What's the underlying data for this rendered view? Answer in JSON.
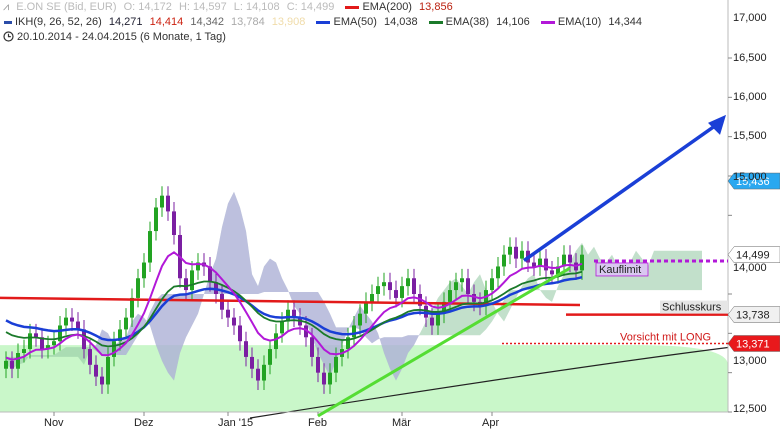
{
  "legend": {
    "instrument": "E.ON SE (Bid, EUR)",
    "o": "O: 14,172",
    "h": "H: 14,597",
    "l": "L: 14,108",
    "c": "C: 14,499",
    "ema200_label": "EMA(200)",
    "ema200_value": "13,856",
    "ikh_label": "IKH(9, 26, 52, 26)",
    "ikh_v1": "14,271",
    "ikh_v2": "14,414",
    "ikh_v3": "14,342",
    "ikh_v4": "13,784",
    "ikh_v5": "13,908",
    "ema50_label": "EMA(50)",
    "ema50_value": "14,038",
    "ema38_label": "EMA(38)",
    "ema38_value": "14,106",
    "ema10_label": "EMA(10)",
    "ema10_value": "14,344",
    "range": "20.10.2014 - 24.04.2015 (6 Monate, 1 Tag)"
  },
  "colors": {
    "up": "#22a322",
    "down": "#7b1fa2",
    "ema200": "#e21a1a",
    "ema50": "#1a3fd6",
    "ema38": "#1b7a2a",
    "ema10": "#b218d8",
    "kumo_bull": "#8fc7a0",
    "kumo_bear": "#b9a6ee",
    "uptrend": "#55dd33",
    "target": "#1a3fd6",
    "support_zone": "#c9f7c9"
  },
  "annotations": {
    "kauflimit": "Kauflimit",
    "schlusskurs": "Schlusskurs",
    "vorsicht": "Vorsicht mit LONG",
    "price_15436": "15,436",
    "price_14499": "14,499",
    "price_13738": "13,738",
    "price_13371": "13,371"
  },
  "chart_data": {
    "type": "candlestick",
    "title": "E.ON SE (Bid, EUR)",
    "x_labels": [
      "Nov",
      "Dez",
      "Jan '15",
      "Feb",
      "Mär",
      "Apr"
    ],
    "y_ticks": [
      12.5,
      13.0,
      13.5,
      14.0,
      14.5,
      15.0,
      15.5,
      16.0,
      16.5,
      17.0
    ],
    "y_tick_labels": [
      "12,500",
      "13,000",
      "13,500",
      "14,000",
      "14,500",
      "15,000",
      "15,500",
      "16,000",
      "16,500",
      "17,000"
    ],
    "ylim": [
      12.4,
      17.1
    ],
    "x_month_index": [
      8,
      23,
      37,
      52,
      66,
      81
    ],
    "n_bars": 97,
    "closes": [
      13.15,
      13.05,
      13.25,
      13.3,
      13.5,
      13.45,
      13.3,
      13.35,
      13.4,
      13.6,
      13.7,
      13.65,
      13.55,
      13.3,
      13.1,
      12.95,
      12.85,
      13.2,
      13.4,
      13.55,
      13.7,
      13.95,
      14.2,
      14.4,
      14.8,
      15.1,
      15.25,
      15.05,
      14.75,
      14.2,
      14.05,
      14.3,
      14.4,
      14.35,
      14.15,
      14.0,
      13.8,
      13.7,
      13.6,
      13.4,
      13.2,
      13.05,
      12.9,
      13.1,
      13.3,
      13.5,
      13.65,
      13.8,
      13.7,
      13.6,
      13.45,
      13.2,
      13.0,
      12.85,
      13.0,
      13.2,
      13.3,
      13.45,
      13.6,
      13.75,
      13.9,
      14.0,
      14.1,
      14.15,
      14.05,
      13.95,
      14.1,
      14.2,
      14.0,
      13.85,
      13.7,
      13.6,
      13.75,
      13.9,
      14.05,
      14.15,
      14.2,
      14.0,
      13.9,
      13.85,
      14.05,
      14.2,
      14.35,
      14.5,
      14.6,
      14.45,
      14.55,
      14.4,
      14.35,
      14.45,
      14.3,
      14.25,
      14.35,
      14.5,
      14.4,
      14.3,
      14.5
    ],
    "ema200": {
      "start": 13.95,
      "end": 13.86
    },
    "ema50_last": 14.038,
    "ema38_last": 14.106,
    "ema10_last": 14.344,
    "support_level": 13.35,
    "uptrend_line": {
      "from": [
        52,
        12.45
      ],
      "to": [
        94,
        14.33
      ]
    },
    "target_arrow": {
      "from": [
        85,
        14.4
      ],
      "to": [
        104,
        16.2
      ]
    },
    "kauflimit_level": 14.42,
    "schlusskurs_level": 13.738,
    "vorsicht_level": 13.371,
    "blue_marker_level": 15.436
  }
}
